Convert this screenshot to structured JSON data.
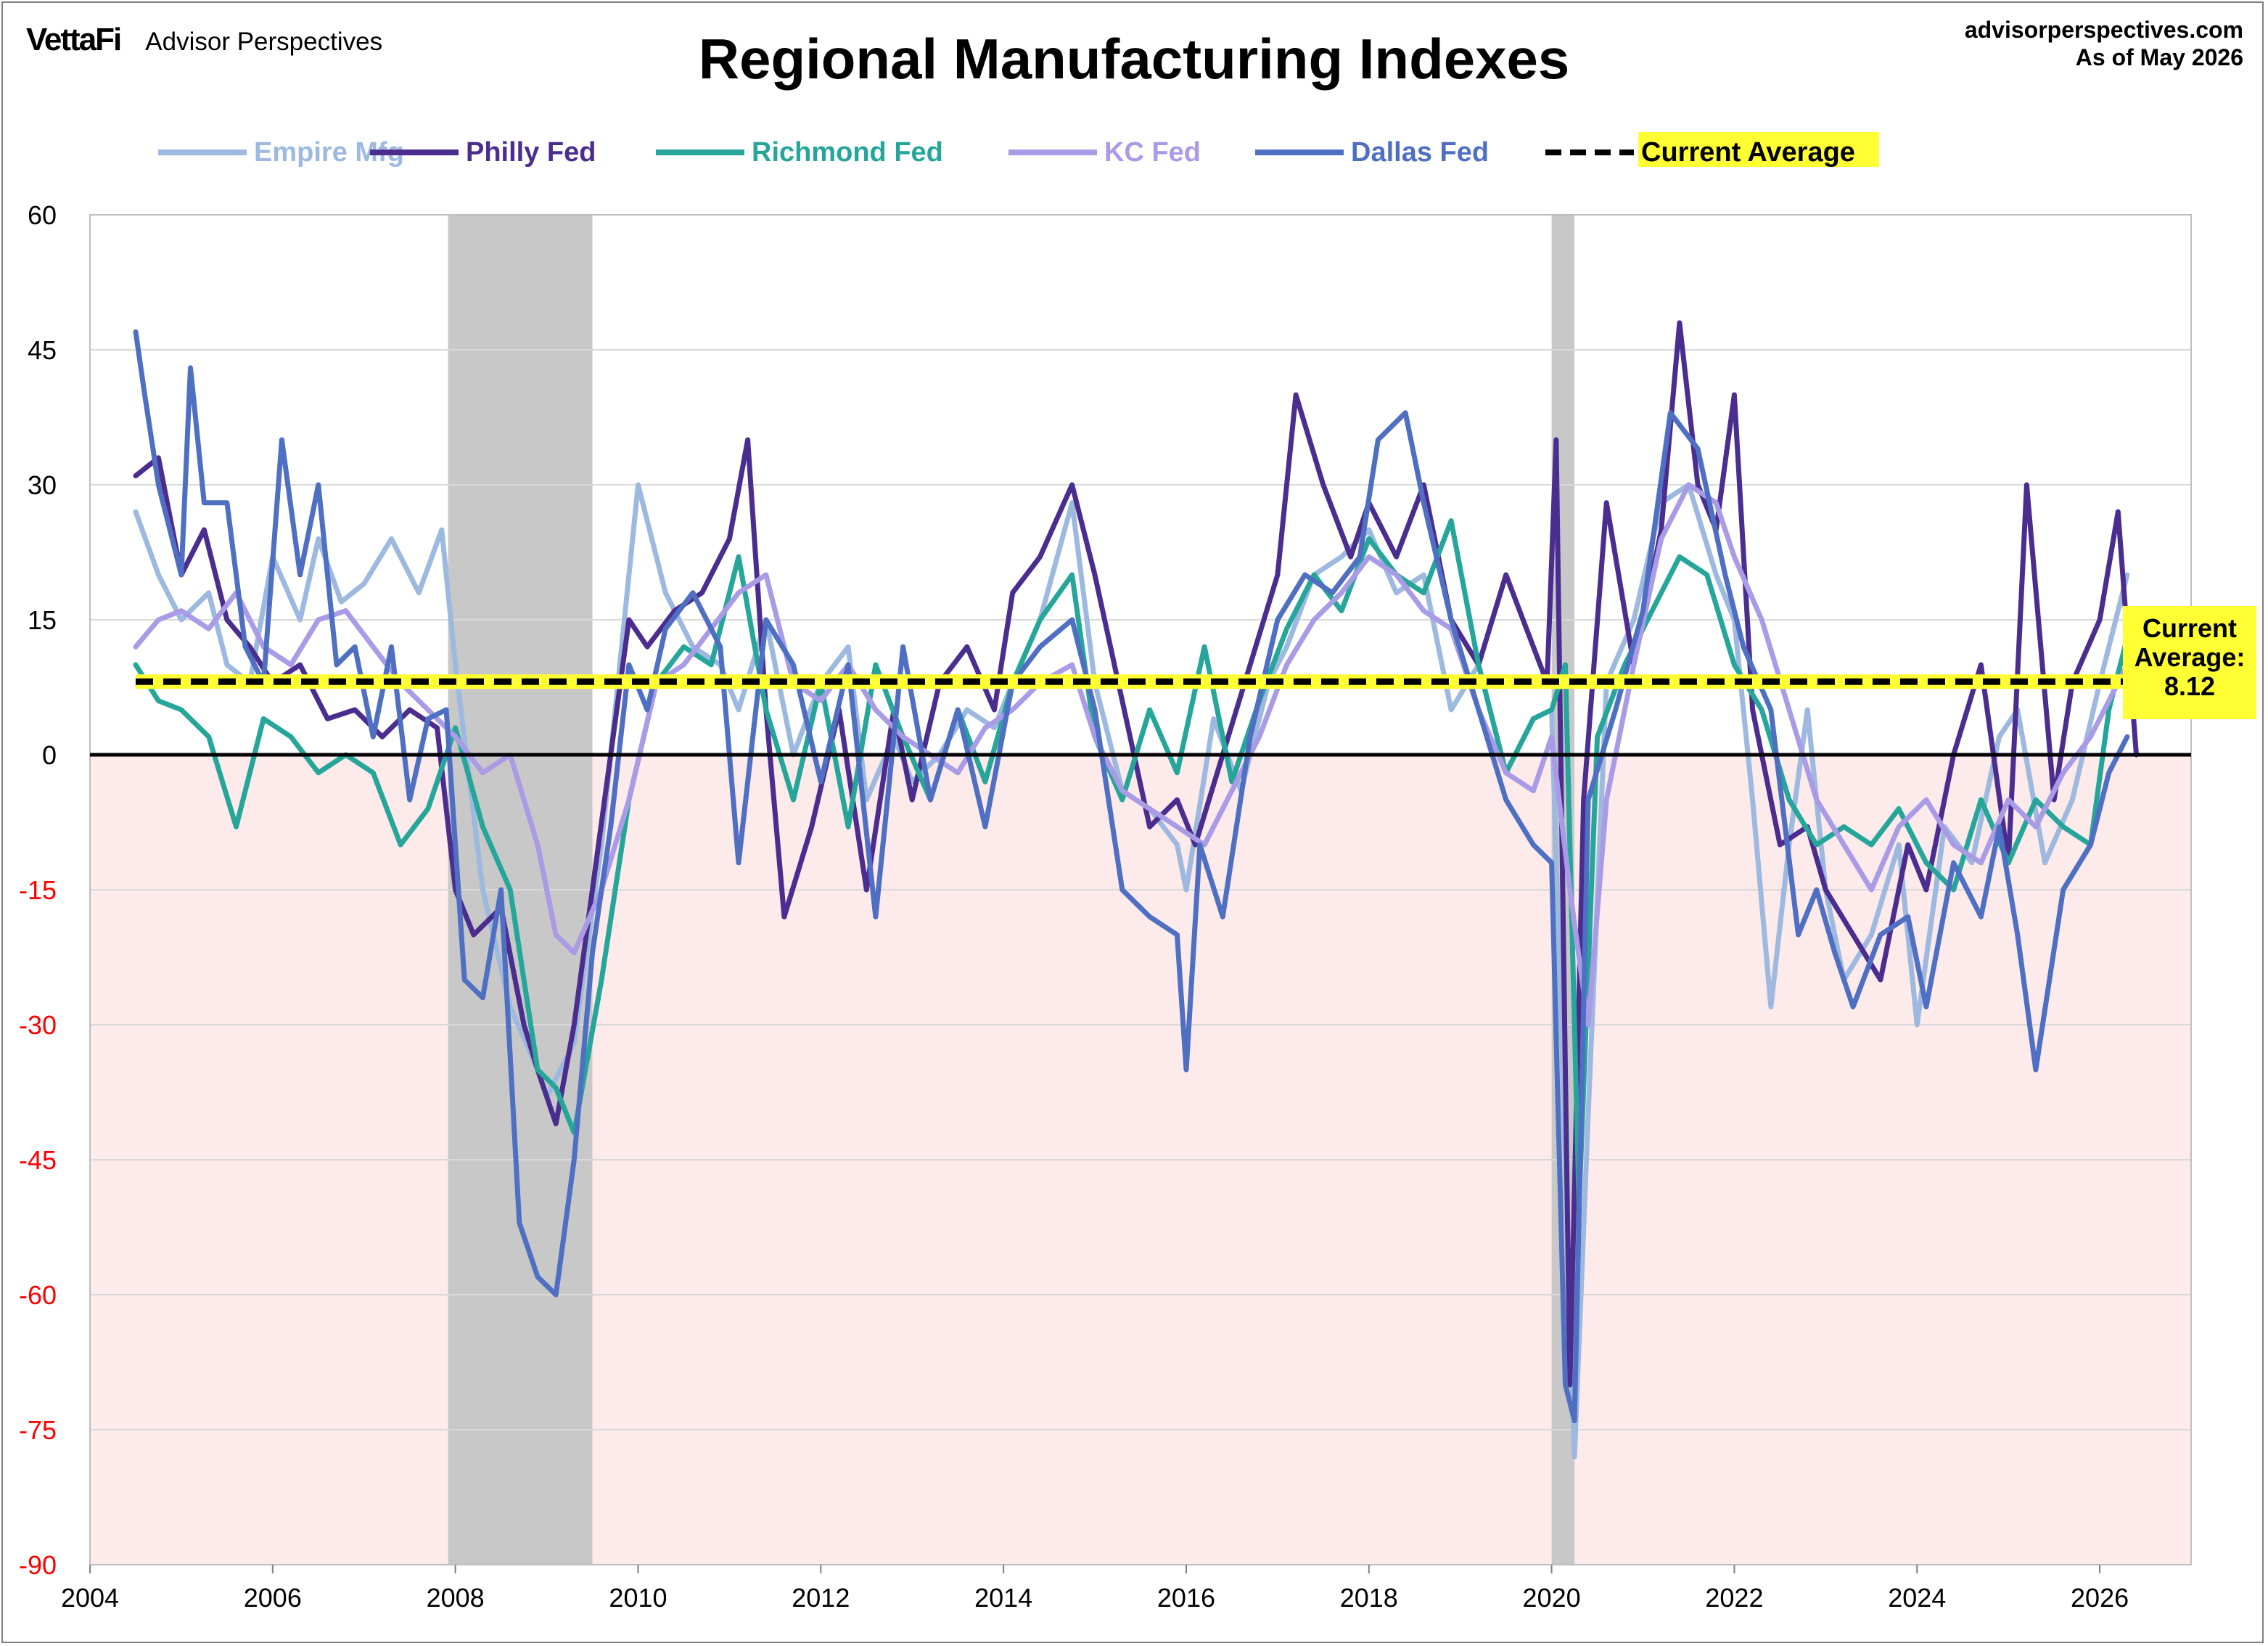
{
  "brand": {
    "logo": "VettaFi",
    "subtitle": "Advisor Perspectives"
  },
  "header": {
    "site": "advisorperspectives.com",
    "asof": "As of May 2026"
  },
  "colors": {
    "empire": "#9db9df",
    "philly": "#4b2d8f",
    "richmond": "#26a69a",
    "kc": "#a99be6",
    "dallas": "#4f6fc2",
    "average": "#000000",
    "highlight": "#ffff33",
    "negative_zone": "#fdeaea",
    "recession": "#c8c8c8",
    "negative_tick": "#ff0000"
  },
  "chart_data": {
    "type": "line",
    "title": "Regional Manufacturing Indexes",
    "xlim": [
      2004,
      2027
    ],
    "ylim": [
      -90,
      60
    ],
    "x_ticks": [
      "2004",
      "2006",
      "2008",
      "2010",
      "2012",
      "2014",
      "2016",
      "2018",
      "2020",
      "2022",
      "2024",
      "2026"
    ],
    "y_ticks": [
      "60",
      "45",
      "30",
      "15",
      "0",
      "-15",
      "-30",
      "-45",
      "-60",
      "-75",
      "-90"
    ],
    "grid": true,
    "legend_position": "top",
    "recessions": [
      [
        2007.92,
        2009.5
      ],
      [
        2020.0,
        2020.25
      ]
    ],
    "average_line": {
      "name": "Current Average",
      "value": 8.12,
      "label": [
        "Current",
        "Average:",
        "8.12"
      ]
    },
    "series": [
      {
        "name": "Empire Mfg",
        "key": "empire",
        "x": [
          2004.5,
          2004.75,
          2005,
          2005.3,
          2005.5,
          2005.75,
          2006,
          2006.3,
          2006.5,
          2006.75,
          2007,
          2007.3,
          2007.6,
          2007.85,
          2008,
          2008.3,
          2008.6,
          2008.9,
          2009,
          2009.3,
          2009.6,
          2009.75,
          2010,
          2010.3,
          2010.6,
          2010.9,
          2011.1,
          2011.4,
          2011.7,
          2012,
          2012.3,
          2012.5,
          2012.8,
          2013,
          2013.3,
          2013.6,
          2013.9,
          2014.1,
          2014.4,
          2014.75,
          2015,
          2015.3,
          2015.6,
          2015.9,
          2016,
          2016.3,
          2016.6,
          2016.9,
          2017.1,
          2017.4,
          2017.7,
          2018,
          2018.3,
          2018.6,
          2018.9,
          2019.2,
          2019.5,
          2019.8,
          2020,
          2020.25,
          2020.4,
          2020.6,
          2020.9,
          2021.2,
          2021.5,
          2021.8,
          2022,
          2022.2,
          2022.4,
          2022.6,
          2022.8,
          2023,
          2023.2,
          2023.5,
          2023.8,
          2024,
          2024.3,
          2024.6,
          2024.9,
          2025.1,
          2025.4,
          2025.7,
          2026,
          2026.3
        ],
        "values": [
          27,
          20,
          15,
          18,
          10,
          8,
          22,
          15,
          24,
          17,
          19,
          24,
          18,
          25,
          10,
          -15,
          -28,
          -35,
          -38,
          -32,
          -10,
          5,
          30,
          18,
          12,
          10,
          5,
          15,
          0,
          8,
          12,
          -5,
          2,
          -3,
          0,
          5,
          3,
          8,
          15,
          28,
          8,
          -4,
          -6,
          -10,
          -15,
          4,
          -4,
          8,
          12,
          20,
          22,
          25,
          18,
          20,
          5,
          10,
          -2,
          4,
          5,
          -78,
          -40,
          8,
          15,
          28,
          30,
          20,
          15,
          -5,
          -28,
          -10,
          5,
          -15,
          -25,
          -20,
          -10,
          -30,
          -8,
          -12,
          2,
          5,
          -12,
          -5,
          8,
          20
        ]
      },
      {
        "name": "Philly Fed",
        "key": "philly",
        "x": [
          2004.5,
          2004.75,
          2005,
          2005.25,
          2005.5,
          2005.75,
          2006,
          2006.3,
          2006.6,
          2006.9,
          2007.2,
          2007.5,
          2007.8,
          2008,
          2008.2,
          2008.5,
          2008.75,
          2008.9,
          2009.1,
          2009.3,
          2009.5,
          2009.7,
          2009.9,
          2010.1,
          2010.4,
          2010.7,
          2011,
          2011.2,
          2011.4,
          2011.6,
          2011.9,
          2012.2,
          2012.5,
          2012.8,
          2013,
          2013.3,
          2013.6,
          2013.9,
          2014.1,
          2014.4,
          2014.75,
          2015,
          2015.3,
          2015.6,
          2015.9,
          2016.1,
          2016.4,
          2016.7,
          2017,
          2017.2,
          2017.5,
          2017.8,
          2018,
          2018.3,
          2018.6,
          2018.9,
          2019.2,
          2019.5,
          2019.8,
          2019.95,
          2020.05,
          2020.2,
          2020.35,
          2020.6,
          2020.9,
          2021.2,
          2021.4,
          2021.6,
          2021.8,
          2022,
          2022.2,
          2022.5,
          2022.8,
          2023,
          2023.3,
          2023.6,
          2023.9,
          2024.1,
          2024.4,
          2024.7,
          2025,
          2025.2,
          2025.5,
          2025.7,
          2026,
          2026.2,
          2026.4
        ],
        "values": [
          31,
          33,
          20,
          25,
          15,
          12,
          8,
          10,
          4,
          5,
          2,
          5,
          3,
          -15,
          -20,
          -17,
          -30,
          -35,
          -41,
          -30,
          -15,
          0,
          15,
          12,
          16,
          18,
          24,
          35,
          5,
          -18,
          -8,
          5,
          -15,
          5,
          -5,
          8,
          12,
          5,
          18,
          22,
          30,
          20,
          6,
          -8,
          -5,
          -10,
          0,
          10,
          20,
          40,
          30,
          22,
          28,
          22,
          30,
          15,
          10,
          20,
          12,
          8,
          35,
          -70,
          -5,
          28,
          10,
          25,
          48,
          30,
          25,
          40,
          5,
          -10,
          -8,
          -15,
          -20,
          -25,
          -10,
          -15,
          0,
          10,
          -12,
          30,
          -5,
          8,
          15,
          27,
          0
        ]
      },
      {
        "name": "Richmond Fed",
        "key": "richmond",
        "x": [
          2004.5,
          2004.75,
          2005,
          2005.3,
          2005.6,
          2005.9,
          2006.2,
          2006.5,
          2006.8,
          2007.1,
          2007.4,
          2007.7,
          2008,
          2008.3,
          2008.6,
          2008.9,
          2009.1,
          2009.3,
          2009.6,
          2009.9,
          2010.2,
          2010.5,
          2010.8,
          2011.1,
          2011.4,
          2011.7,
          2012,
          2012.3,
          2012.6,
          2012.9,
          2013.2,
          2013.5,
          2013.8,
          2014.1,
          2014.4,
          2014.75,
          2015,
          2015.3,
          2015.6,
          2015.9,
          2016.2,
          2016.5,
          2016.8,
          2017.1,
          2017.4,
          2017.7,
          2018,
          2018.3,
          2018.6,
          2018.9,
          2019.2,
          2019.5,
          2019.8,
          2020,
          2020.15,
          2020.3,
          2020.5,
          2020.8,
          2021.1,
          2021.4,
          2021.7,
          2022,
          2022.3,
          2022.6,
          2022.9,
          2023.2,
          2023.5,
          2023.8,
          2024.1,
          2024.4,
          2024.7,
          2025,
          2025.3,
          2025.6,
          2025.9,
          2026.1,
          2026.3
        ],
        "values": [
          10,
          6,
          5,
          2,
          -8,
          4,
          2,
          -2,
          0,
          -2,
          -10,
          -6,
          3,
          -8,
          -15,
          -35,
          -37,
          -42,
          -25,
          -5,
          8,
          12,
          10,
          22,
          5,
          -5,
          8,
          -8,
          10,
          2,
          -5,
          5,
          -3,
          8,
          15,
          20,
          2,
          -5,
          5,
          -2,
          12,
          -3,
          6,
          14,
          20,
          16,
          24,
          20,
          18,
          26,
          10,
          -2,
          4,
          5,
          10,
          -50,
          2,
          10,
          16,
          22,
          20,
          10,
          5,
          -5,
          -10,
          -8,
          -10,
          -6,
          -12,
          -15,
          -5,
          -12,
          -5,
          -8,
          -10,
          5,
          13
        ]
      },
      {
        "name": "KC Fed",
        "key": "kc",
        "x": [
          2004.5,
          2004.75,
          2005,
          2005.3,
          2005.6,
          2005.9,
          2006.2,
          2006.5,
          2006.8,
          2007.1,
          2007.4,
          2007.7,
          2008,
          2008.3,
          2008.6,
          2008.9,
          2009.1,
          2009.3,
          2009.6,
          2009.9,
          2010.2,
          2010.5,
          2010.8,
          2011.1,
          2011.4,
          2011.7,
          2012,
          2012.3,
          2012.6,
          2012.9,
          2013.2,
          2013.5,
          2013.8,
          2014.1,
          2014.4,
          2014.75,
          2015,
          2015.3,
          2015.6,
          2015.9,
          2016.2,
          2016.5,
          2016.8,
          2017.1,
          2017.4,
          2017.7,
          2018,
          2018.3,
          2018.6,
          2018.9,
          2019.2,
          2019.5,
          2019.8,
          2020,
          2020.2,
          2020.4,
          2020.6,
          2020.9,
          2021.2,
          2021.5,
          2021.8,
          2022,
          2022.3,
          2022.6,
          2022.9,
          2023.2,
          2023.5,
          2023.8,
          2024.1,
          2024.4,
          2024.7,
          2025,
          2025.3,
          2025.6,
          2025.9,
          2026.1,
          2026.3
        ],
        "values": [
          12,
          15,
          16,
          14,
          18,
          12,
          10,
          15,
          16,
          12,
          8,
          5,
          2,
          -2,
          0,
          -10,
          -20,
          -22,
          -15,
          -5,
          8,
          10,
          14,
          18,
          20,
          8,
          6,
          10,
          5,
          2,
          0,
          -2,
          3,
          5,
          8,
          10,
          2,
          -4,
          -6,
          -8,
          -10,
          -4,
          2,
          10,
          15,
          18,
          22,
          20,
          16,
          14,
          5,
          -2,
          -4,
          2,
          -15,
          -30,
          -5,
          10,
          24,
          30,
          28,
          22,
          15,
          5,
          -5,
          -10,
          -15,
          -8,
          -5,
          -10,
          -12,
          -5,
          -8,
          -2,
          2,
          6,
          10
        ]
      },
      {
        "name": "Dallas Fed",
        "key": "dallas",
        "x": [
          2004.5,
          2004.6,
          2004.75,
          2005,
          2005.1,
          2005.25,
          2005.5,
          2005.7,
          2005.9,
          2006.1,
          2006.3,
          2006.5,
          2006.7,
          2006.9,
          2007.1,
          2007.3,
          2007.5,
          2007.7,
          2007.9,
          2008.1,
          2008.3,
          2008.5,
          2008.7,
          2008.9,
          2009.1,
          2009.3,
          2009.5,
          2009.7,
          2009.9,
          2010.1,
          2010.3,
          2010.6,
          2010.9,
          2011.1,
          2011.4,
          2011.7,
          2012,
          2012.3,
          2012.6,
          2012.9,
          2013.2,
          2013.5,
          2013.8,
          2014.1,
          2014.4,
          2014.75,
          2015,
          2015.3,
          2015.6,
          2015.9,
          2016,
          2016.15,
          2016.4,
          2016.7,
          2017,
          2017.3,
          2017.6,
          2017.9,
          2018.1,
          2018.4,
          2018.6,
          2018.9,
          2019.2,
          2019.5,
          2019.8,
          2020,
          2020.15,
          2020.25,
          2020.4,
          2020.7,
          2021,
          2021.3,
          2021.6,
          2021.9,
          2022.1,
          2022.4,
          2022.7,
          2022.9,
          2023.1,
          2023.3,
          2023.6,
          2023.9,
          2024.1,
          2024.4,
          2024.7,
          2024.9,
          2025.1,
          2025.3,
          2025.6,
          2025.9,
          2026.1,
          2026.3
        ],
        "values": [
          47,
          40,
          30,
          20,
          43,
          28,
          28,
          12,
          8,
          35,
          20,
          30,
          10,
          12,
          2,
          12,
          -5,
          4,
          5,
          -25,
          -27,
          -15,
          -52,
          -58,
          -60,
          -45,
          -22,
          -8,
          10,
          5,
          14,
          18,
          12,
          -12,
          15,
          10,
          -3,
          10,
          -18,
          12,
          -5,
          5,
          -8,
          8,
          12,
          15,
          5,
          -15,
          -18,
          -20,
          -35,
          -10,
          -18,
          2,
          15,
          20,
          18,
          22,
          35,
          38,
          28,
          15,
          5,
          -5,
          -10,
          -12,
          -70,
          -74,
          -5,
          5,
          16,
          38,
          34,
          20,
          12,
          5,
          -20,
          -15,
          -22,
          -28,
          -20,
          -18,
          -28,
          -12,
          -18,
          -8,
          -20,
          -35,
          -15,
          -10,
          -2,
          2
        ]
      }
    ]
  }
}
